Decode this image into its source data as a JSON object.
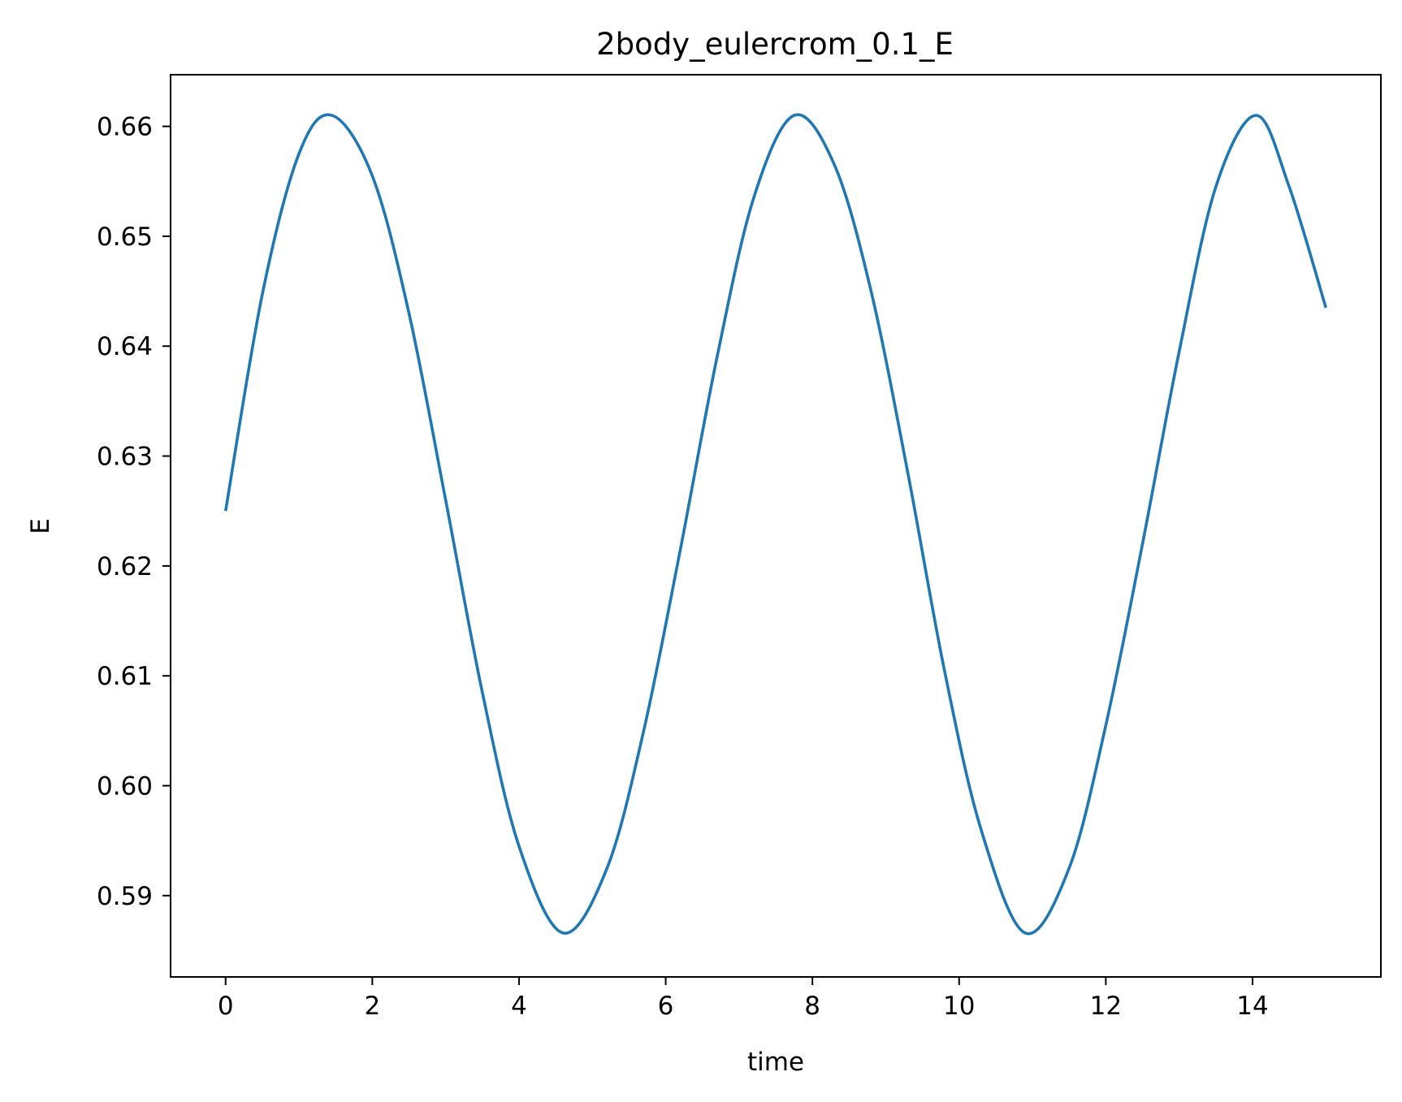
{
  "chart_data": {
    "type": "line",
    "title": "2body_eulercrom_0.1_E",
    "xlabel": "time",
    "ylabel": "E",
    "xlim": [
      -0.75,
      15.75
    ],
    "ylim": [
      0.5826,
      0.6647
    ],
    "x_ticks": [
      0,
      2,
      4,
      6,
      8,
      10,
      12,
      14
    ],
    "x_tick_labels": [
      "0",
      "2",
      "4",
      "6",
      "8",
      "10",
      "12",
      "14"
    ],
    "y_ticks": [
      0.59,
      0.6,
      0.61,
      0.62,
      0.63,
      0.64,
      0.65,
      0.66
    ],
    "y_tick_labels": [
      "0.59",
      "0.60",
      "0.61",
      "0.62",
      "0.63",
      "0.64",
      "0.65",
      "0.66"
    ],
    "grid": false,
    "series": [
      {
        "color": "#1f77b4",
        "x": [
          0.0,
          0.5,
          1.0,
          1.45,
          2.0,
          2.5,
          3.0,
          3.5,
          4.0,
          4.6,
          5.2,
          5.7,
          6.2,
          6.7,
          7.2,
          7.75,
          8.3,
          8.8,
          9.3,
          9.8,
          10.3,
          10.9,
          11.5,
          12.0,
          12.5,
          13.0,
          13.5,
          14.05,
          14.5,
          15.0
        ],
        "y": [
          0.625,
          0.6447,
          0.6575,
          0.661,
          0.6555,
          0.643,
          0.626,
          0.6085,
          0.5945,
          0.5866,
          0.5925,
          0.605,
          0.6215,
          0.639,
          0.6535,
          0.661,
          0.6565,
          0.645,
          0.6285,
          0.6105,
          0.596,
          0.5866,
          0.5925,
          0.6055,
          0.622,
          0.6395,
          0.6545,
          0.661,
          0.6545,
          0.6435
        ]
      }
    ]
  }
}
